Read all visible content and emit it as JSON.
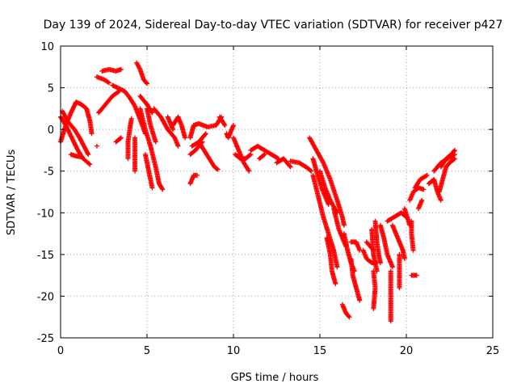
{
  "chart_data": {
    "type": "scatter",
    "title": "Day 139 of 2024, Sidereal Day-to-day VTEC variation (SDTVAR) for receiver p427",
    "xlabel": "GPS time / hours",
    "ylabel": "SDTVAR / TECUs",
    "xlim": [
      0,
      25
    ],
    "ylim": [
      -25,
      10
    ],
    "x_ticks": [
      0,
      5,
      10,
      15,
      20,
      25
    ],
    "y_ticks": [
      -25,
      -20,
      -15,
      -10,
      -5,
      0,
      5,
      10
    ],
    "x_tick_labels": [
      "0",
      "5",
      "10",
      "15",
      "20",
      "25"
    ],
    "y_tick_labels": [
      "-25",
      "-20",
      "-15",
      "-10",
      "-5",
      "0",
      "5",
      "10"
    ],
    "grid": true,
    "marker": "plus",
    "series_color": "#ff0000",
    "series": [
      {
        "tracks": [
          [
            [
              0.0,
              -1.5
            ],
            [
              0.3,
              0.5
            ],
            [
              0.6,
              2.0
            ],
            [
              0.9,
              3.3
            ],
            [
              1.2,
              3.0
            ],
            [
              1.5,
              2.5
            ],
            [
              1.7,
              1.0
            ],
            [
              1.8,
              -0.5
            ]
          ],
          [
            [
              0.0,
              1.5
            ],
            [
              0.3,
              0.5
            ],
            [
              0.6,
              -0.8
            ],
            [
              1.0,
              -2.5
            ],
            [
              1.3,
              -3.5
            ],
            [
              1.7,
              -4.2
            ]
          ],
          [
            [
              0.1,
              2.2
            ],
            [
              0.4,
              1.0
            ],
            [
              0.8,
              0.0
            ],
            [
              1.1,
              -1.0
            ],
            [
              1.4,
              -2.2
            ],
            [
              1.6,
              -3.0
            ]
          ],
          [
            [
              0.6,
              -3.0
            ],
            [
              0.9,
              -3.2
            ],
            [
              1.2,
              -3.3
            ]
          ],
          [
            [
              2.1,
              -2.0
            ]
          ],
          [
            [
              2.1,
              6.3
            ],
            [
              2.5,
              6.0
            ],
            [
              2.8,
              5.6
            ]
          ],
          [
            [
              2.4,
              7.0
            ],
            [
              2.8,
              7.2
            ],
            [
              3.2,
              7.0
            ],
            [
              3.5,
              7.2
            ]
          ],
          [
            [
              2.2,
              2.0
            ],
            [
              2.6,
              3.0
            ],
            [
              3.0,
              4.0
            ],
            [
              3.4,
              4.6
            ]
          ],
          [
            [
              3.2,
              -1.5
            ],
            [
              3.5,
              -1.0
            ]
          ],
          [
            [
              3.0,
              5.3
            ],
            [
              3.3,
              5.0
            ],
            [
              3.7,
              4.6
            ],
            [
              4.0,
              3.8
            ],
            [
              4.3,
              2.8
            ],
            [
              4.6,
              1.2
            ],
            [
              4.9,
              -0.5
            ]
          ],
          [
            [
              3.9,
              -3.5
            ],
            [
              3.9,
              -1.5
            ],
            [
              4.0,
              0.0
            ],
            [
              4.1,
              1.3
            ]
          ],
          [
            [
              4.3,
              -5.0
            ],
            [
              4.3,
              -3.0
            ],
            [
              4.3,
              -1.0
            ]
          ],
          [
            [
              4.4,
              8.0
            ],
            [
              4.6,
              7.2
            ],
            [
              4.8,
              6.0
            ],
            [
              5.0,
              5.5
            ]
          ],
          [
            [
              4.6,
              4.0
            ],
            [
              5.0,
              3.0
            ],
            [
              5.3,
              2.0
            ]
          ],
          [
            [
              5.0,
              2.5
            ],
            [
              5.2,
              0.5
            ],
            [
              5.5,
              -1.5
            ]
          ],
          [
            [
              4.6,
              2.5
            ],
            [
              4.9,
              0.0
            ],
            [
              5.2,
              -2.0
            ],
            [
              5.5,
              -4.5
            ],
            [
              5.7,
              -6.5
            ],
            [
              5.9,
              -7.2
            ]
          ],
          [
            [
              4.9,
              -3.0
            ],
            [
              5.1,
              -5.0
            ],
            [
              5.3,
              -7.0
            ]
          ],
          [
            [
              5.4,
              2.5
            ],
            [
              5.8,
              1.5
            ],
            [
              6.2,
              0.0
            ],
            [
              6.6,
              -1.0
            ],
            [
              6.8,
              -2.0
            ]
          ],
          [
            [
              6.5,
              0.5
            ],
            [
              6.8,
              1.5
            ],
            [
              7.0,
              0.5
            ],
            [
              7.2,
              -1.0
            ]
          ],
          [
            [
              6.2,
              1.5
            ],
            [
              6.5,
              0.0
            ]
          ],
          [
            [
              7.5,
              -6.5
            ],
            [
              7.7,
              -5.5
            ],
            [
              7.9,
              -5.5
            ]
          ],
          [
            [
              7.5,
              -1.0
            ],
            [
              7.7,
              0.5
            ],
            [
              8.0,
              0.7
            ],
            [
              8.5,
              0.3
            ],
            [
              9.0,
              0.5
            ],
            [
              9.3,
              1.5
            ]
          ],
          [
            [
              7.6,
              -2.0
            ],
            [
              8.0,
              -1.5
            ],
            [
              8.4,
              -0.5
            ]
          ],
          [
            [
              8.0,
              -1.5
            ],
            [
              8.3,
              -2.5
            ],
            [
              8.6,
              -3.5
            ],
            [
              8.9,
              -4.5
            ],
            [
              9.1,
              -4.8
            ]
          ],
          [
            [
              7.5,
              -3.0
            ],
            [
              7.8,
              -2.5
            ],
            [
              8.2,
              -1.5
            ]
          ],
          [
            [
              9.2,
              1.5
            ],
            [
              9.5,
              0.5
            ]
          ],
          [
            [
              9.6,
              -0.5
            ],
            [
              9.7,
              -1.0
            ],
            [
              10.0,
              0.5
            ]
          ],
          [
            [
              10.0,
              -1.0
            ],
            [
              10.3,
              -2.5
            ],
            [
              10.6,
              -4.0
            ],
            [
              10.9,
              -5.0
            ]
          ],
          [
            [
              10.1,
              -3.0
            ],
            [
              10.4,
              -3.5
            ],
            [
              10.7,
              -3.5
            ],
            [
              11.0,
              -3.0
            ]
          ],
          [
            [
              11.0,
              -2.5
            ],
            [
              11.4,
              -2.0
            ],
            [
              11.8,
              -2.5
            ],
            [
              12.2,
              -3.0
            ],
            [
              12.6,
              -3.5
            ]
          ],
          [
            [
              11.5,
              -3.5
            ],
            [
              11.8,
              -3.0
            ]
          ],
          [
            [
              12.5,
              -4.0
            ],
            [
              12.9,
              -3.5
            ],
            [
              13.3,
              -4.5
            ]
          ],
          [
            [
              13.3,
              -3.8
            ],
            [
              13.8,
              -4.0
            ],
            [
              14.2,
              -4.5
            ],
            [
              14.5,
              -5.0
            ]
          ],
          [
            [
              14.4,
              -1.0
            ],
            [
              14.8,
              -2.5
            ],
            [
              15.2,
              -4.0
            ],
            [
              15.6,
              -6.0
            ],
            [
              16.0,
              -8.5
            ],
            [
              16.3,
              -10.5
            ],
            [
              16.4,
              -11.5
            ]
          ],
          [
            [
              14.6,
              -3.5
            ],
            [
              14.8,
              -5.0
            ],
            [
              15.1,
              -7.0
            ],
            [
              15.5,
              -9.0
            ]
          ],
          [
            [
              15.0,
              -5.0
            ],
            [
              15.3,
              -7.0
            ],
            [
              15.6,
              -8.5
            ],
            [
              16.0,
              -10.0
            ]
          ],
          [
            [
              14.6,
              -5.5
            ],
            [
              14.9,
              -8.0
            ],
            [
              15.2,
              -10.5
            ],
            [
              15.5,
              -12.5
            ],
            [
              15.8,
              -14.5
            ],
            [
              16.0,
              -16.5
            ]
          ],
          [
            [
              15.4,
              -13.0
            ],
            [
              15.6,
              -15.0
            ],
            [
              15.7,
              -17.0
            ],
            [
              15.9,
              -18.5
            ]
          ],
          [
            [
              15.8,
              -9.5
            ],
            [
              16.1,
              -12.0
            ],
            [
              16.3,
              -13.0
            ],
            [
              16.5,
              -14.0
            ]
          ],
          [
            [
              16.3,
              -21.0
            ],
            [
              16.5,
              -22.0
            ],
            [
              16.7,
              -22.5
            ]
          ],
          [
            [
              16.4,
              -12.5
            ],
            [
              16.6,
              -14.5
            ],
            [
              16.8,
              -16.0
            ],
            [
              17.0,
              -17.0
            ]
          ],
          [
            [
              16.8,
              -13.5
            ],
            [
              17.1,
              -13.5
            ],
            [
              17.3,
              -14.5
            ]
          ],
          [
            [
              16.8,
              -15.5
            ],
            [
              16.9,
              -17.5
            ],
            [
              17.1,
              -19.0
            ],
            [
              17.3,
              -20.5
            ]
          ],
          [
            [
              17.5,
              -14.5
            ],
            [
              17.7,
              -15.5
            ],
            [
              18.0,
              -16.0
            ],
            [
              18.3,
              -16.0
            ]
          ],
          [
            [
              17.7,
              -13.5
            ],
            [
              18.1,
              -14.5
            ]
          ],
          [
            [
              18.0,
              -12.0
            ],
            [
              18.1,
              -15.0
            ],
            [
              18.3,
              -17.0
            ]
          ],
          [
            [
              18.2,
              -11.0
            ],
            [
              18.3,
              -13.5
            ],
            [
              18.4,
              -15.0
            ],
            [
              18.5,
              -16.0
            ]
          ],
          [
            [
              18.1,
              -17.0
            ],
            [
              18.2,
              -19.0
            ],
            [
              18.1,
              -21.5
            ]
          ],
          [
            [
              18.5,
              -11.5
            ],
            [
              18.7,
              -13.0
            ],
            [
              18.9,
              -15.0
            ],
            [
              19.2,
              -16.5
            ]
          ],
          [
            [
              18.9,
              -11.0
            ],
            [
              19.3,
              -10.5
            ],
            [
              19.7,
              -10.0
            ],
            [
              20.0,
              -10.5
            ]
          ],
          [
            [
              19.2,
              -11.5
            ],
            [
              19.5,
              -13.0
            ],
            [
              19.8,
              -14.5
            ],
            [
              19.9,
              -15.5
            ]
          ],
          [
            [
              19.1,
              -17.0
            ],
            [
              19.1,
              -20.0
            ],
            [
              19.1,
              -23.0
            ]
          ],
          [
            [
              19.6,
              -15.0
            ],
            [
              19.6,
              -17.0
            ],
            [
              19.6,
              -19.0
            ]
          ],
          [
            [
              19.9,
              -9.5
            ],
            [
              20.2,
              -11.5
            ]
          ],
          [
            [
              20.3,
              -11.0
            ],
            [
              20.3,
              -12.5
            ],
            [
              20.4,
              -14.5
            ]
          ],
          [
            [
              20.3,
              -17.5
            ],
            [
              20.6,
              -17.5
            ]
          ],
          [
            [
              20.2,
              -8.5
            ],
            [
              20.4,
              -7.5
            ],
            [
              20.7,
              -7.0
            ],
            [
              21.0,
              -7.2
            ]
          ],
          [
            [
              20.5,
              -7.0
            ],
            [
              20.8,
              -6.0
            ],
            [
              21.2,
              -5.5
            ]
          ],
          [
            [
              20.7,
              -9.5
            ],
            [
              20.9,
              -8.5
            ]
          ],
          [
            [
              21.3,
              -6.5
            ],
            [
              21.6,
              -6.0
            ],
            [
              21.8,
              -7.5
            ],
            [
              22.0,
              -8.5
            ]
          ],
          [
            [
              21.6,
              -5.0
            ],
            [
              22.0,
              -4.0
            ],
            [
              22.4,
              -3.5
            ],
            [
              22.8,
              -3.0
            ]
          ],
          [
            [
              22.0,
              -4.5
            ],
            [
              22.3,
              -3.5
            ],
            [
              22.6,
              -3.0
            ],
            [
              22.8,
              -2.5
            ]
          ],
          [
            [
              21.9,
              -7.5
            ],
            [
              22.1,
              -6.0
            ],
            [
              22.3,
              -4.5
            ],
            [
              22.5,
              -4.0
            ],
            [
              22.8,
              -3.5
            ]
          ]
        ]
      }
    ]
  }
}
